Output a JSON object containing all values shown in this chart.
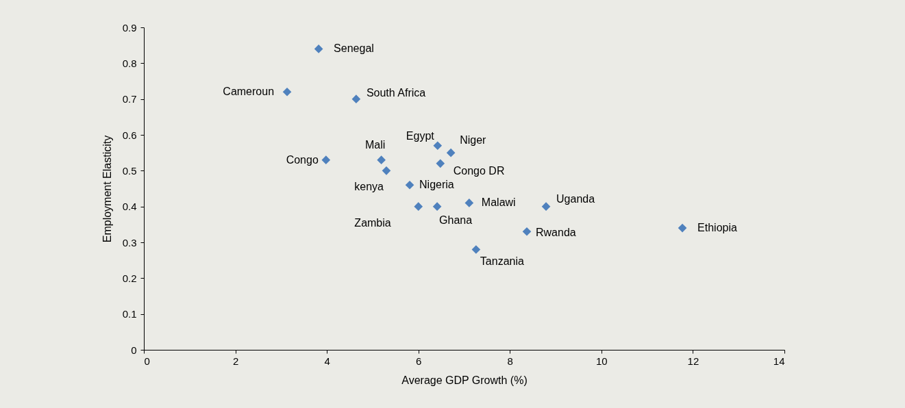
{
  "chart_data": {
    "type": "scatter",
    "xlabel": "Average GDP Growth (%)",
    "ylabel": "Employment Elasticity",
    "x": [
      3.82,
      3.13,
      4.64,
      6.42,
      6.71,
      5.19,
      3.98,
      6.48,
      5.3,
      5.81,
      7.11,
      8.79,
      6.0,
      6.41,
      8.37,
      11.77,
      7.26
    ],
    "values": [
      0.84,
      0.72,
      0.7,
      0.57,
      0.55,
      0.53,
      0.53,
      0.52,
      0.5,
      0.46,
      0.41,
      0.4,
      0.4,
      0.4,
      0.33,
      0.34,
      0.28
    ],
    "color": "#4f81bd",
    "marker": "diamond",
    "grid": false,
    "xlim": [
      0,
      14
    ],
    "xticks": [
      0,
      2,
      4,
      6,
      8,
      10,
      12,
      14
    ],
    "ylim": [
      0,
      0.9
    ],
    "yticks": [
      0,
      0.1,
      0.2,
      0.3,
      0.4,
      0.5,
      0.6,
      0.7,
      0.8,
      0.9
    ],
    "annotations": [
      {
        "text": "Senegal",
        "x": 3.82,
        "y": 0.84
      },
      {
        "text": "Cameroun",
        "x": 3.13,
        "y": 0.72
      },
      {
        "text": "South Africa",
        "x": 4.64,
        "y": 0.7
      },
      {
        "text": "Egypt",
        "x": 6.42,
        "y": 0.57
      },
      {
        "text": "Niger",
        "x": 6.71,
        "y": 0.55
      },
      {
        "text": "Mali",
        "x": 5.19,
        "y": 0.53
      },
      {
        "text": "Congo",
        "x": 3.98,
        "y": 0.53
      },
      {
        "text": "Congo DR",
        "x": 6.48,
        "y": 0.52
      },
      {
        "text": "kenya",
        "x": 5.3,
        "y": 0.5
      },
      {
        "text": "Nigeria",
        "x": 5.81,
        "y": 0.46
      },
      {
        "text": "Malawi",
        "x": 7.11,
        "y": 0.41
      },
      {
        "text": "Uganda",
        "x": 8.79,
        "y": 0.4
      },
      {
        "text": "Zambia",
        "x": 6.0,
        "y": 0.4
      },
      {
        "text": "Ghana",
        "x": 6.41,
        "y": 0.4
      },
      {
        "text": "Rwanda",
        "x": 8.37,
        "y": 0.33
      },
      {
        "text": "Ethiopia",
        "x": 11.77,
        "y": 0.34
      },
      {
        "text": "Tanzania",
        "x": 7.26,
        "y": 0.28
      }
    ]
  }
}
